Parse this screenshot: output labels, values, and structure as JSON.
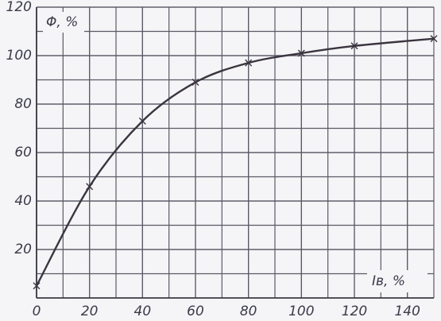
{
  "chart_data": {
    "type": "line",
    "y_label": "Φ, %",
    "x_label": "Iв, %",
    "x": [
      0,
      20,
      40,
      60,
      80,
      100,
      120,
      150
    ],
    "series": [
      {
        "color": "#3b3540",
        "values": [
          5,
          46,
          73,
          89,
          97,
          101,
          104,
          107
        ]
      }
    ],
    "xlim": [
      0,
      150
    ],
    "ylim": [
      0,
      120
    ],
    "xticks": [
      0,
      20,
      40,
      60,
      80,
      100,
      120,
      140
    ],
    "yticks": [
      20,
      40,
      60,
      80,
      100,
      120
    ],
    "grid": true
  }
}
